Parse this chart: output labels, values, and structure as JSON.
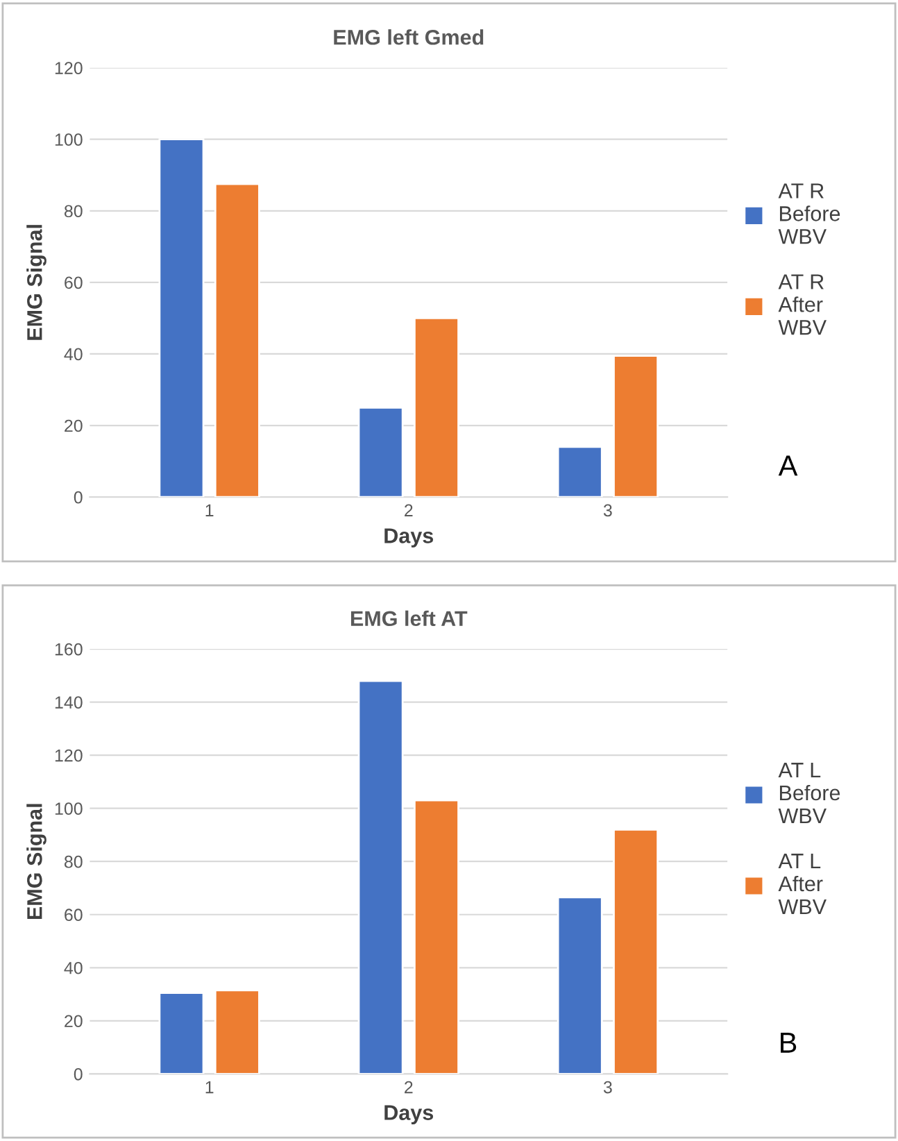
{
  "chart_data": [
    {
      "type": "bar",
      "title": "EMG left Gmed",
      "xlabel": "Days",
      "ylabel": "EMG Signal",
      "categories": [
        "1",
        "2",
        "3"
      ],
      "series": [
        {
          "name": "AT R Before WBV",
          "color": "#4472c4",
          "values": [
            100,
            25,
            14
          ]
        },
        {
          "name": "AT R After WBV",
          "color": "#ed7d31",
          "values": [
            87.5,
            50,
            39.5
          ]
        }
      ],
      "ylim": [
        0,
        120
      ],
      "yticks": [
        0,
        20,
        40,
        60,
        80,
        100,
        120
      ],
      "grid": "y",
      "legend": "right",
      "annotations": [
        "A"
      ]
    },
    {
      "type": "bar",
      "title": "EMG left AT",
      "xlabel": "Days",
      "ylabel": "EMG Signal",
      "categories": [
        "1",
        "2",
        "3"
      ],
      "series": [
        {
          "name": "AT L Before WBV",
          "color": "#4472c4",
          "values": [
            30.5,
            148,
            66.5
          ]
        },
        {
          "name": "AT L After WBV",
          "color": "#ed7d31",
          "values": [
            31.5,
            103,
            92
          ]
        }
      ],
      "ylim": [
        0,
        160
      ],
      "yticks": [
        0,
        20,
        40,
        60,
        80,
        100,
        120,
        140,
        160
      ],
      "grid": "y",
      "legend": "right",
      "annotations": [
        "B"
      ]
    }
  ]
}
